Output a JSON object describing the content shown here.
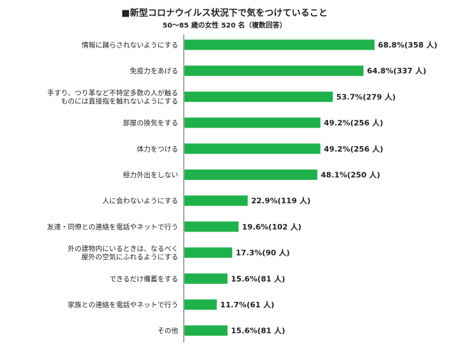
{
  "chart_data": {
    "type": "bar",
    "orientation": "horizontal",
    "title": "■新型コロナウイルス状況下で気をつけていること",
    "subtitle": "50～85 歳の女性 520 名（複数回答）",
    "bar_color": "#1fb24a",
    "categories": [
      [
        "情報に踊らされないようにする"
      ],
      [
        "免疫力をあげる"
      ],
      [
        "手すり、つり革など不特定多数の人が触る",
        "ものには直接指を触れないようにする"
      ],
      [
        "部屋の換気をする"
      ],
      [
        "体力をつける"
      ],
      [
        "極力外出をしない"
      ],
      [
        "人に会わないようにする"
      ],
      [
        "友達・同僚との連絡を電話やネットで行う"
      ],
      [
        "外の建物内にいるときは、なるべく",
        "屋外の空気にふれるようにする"
      ],
      [
        "できるだけ備蓄をする"
      ],
      [
        "家族との連絡を電話やネットで行う"
      ],
      [
        "その他"
      ]
    ],
    "values": [
      68.8,
      64.8,
      53.7,
      49.2,
      49.2,
      48.1,
      22.9,
      19.6,
      17.3,
      15.6,
      11.7,
      15.6
    ],
    "labels": [
      "68.8%(358 人)",
      "64.8%(337 人)",
      "53.7%(279 人)",
      "49.2%(256 人)",
      "49.2%(256 人)",
      "48.1%(250 人)",
      "22.9%(119 人)",
      "19.6%(102 人)",
      "17.3%(90 人)",
      "15.6%(81 人)",
      "11.7%(61 人)",
      "15.6%(81 人)"
    ],
    "xlim": [
      0,
      100
    ],
    "grid": false,
    "legend": "none"
  }
}
